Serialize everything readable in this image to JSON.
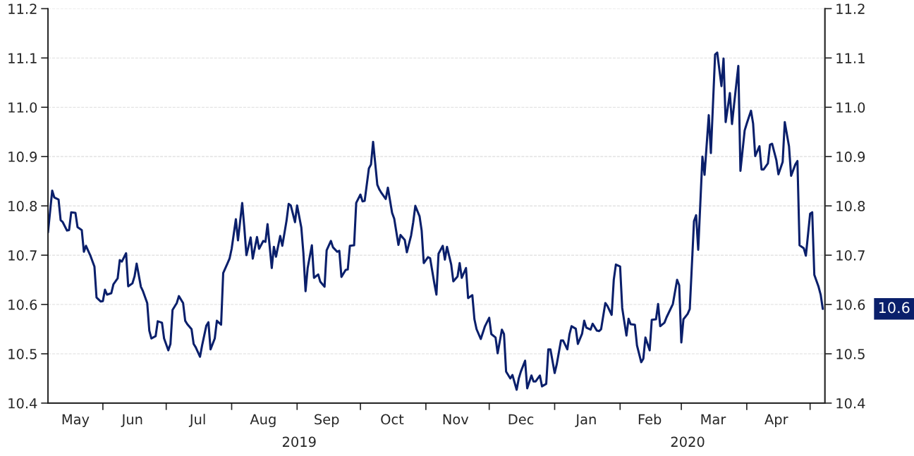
{
  "chart_data": {
    "type": "line",
    "x": [
      "2019-05-06",
      "2019-05-08",
      "2019-05-09",
      "2019-05-11",
      "2019-05-12",
      "2019-05-13",
      "2019-05-15",
      "2019-05-16",
      "2019-05-17",
      "2019-05-19",
      "2019-05-20",
      "2019-05-22",
      "2019-05-23",
      "2019-05-24",
      "2019-05-26",
      "2019-05-28",
      "2019-05-29",
      "2019-05-31",
      "2019-06-01",
      "2019-06-02",
      "2019-06-03",
      "2019-06-05",
      "2019-06-06",
      "2019-06-08",
      "2019-06-09",
      "2019-06-10",
      "2019-06-12",
      "2019-06-13",
      "2019-06-15",
      "2019-06-16",
      "2019-06-17",
      "2019-06-19",
      "2019-06-20",
      "2019-06-22",
      "2019-06-23",
      "2019-06-24",
      "2019-06-26",
      "2019-06-27",
      "2019-06-29",
      "2019-06-30",
      "2019-07-02",
      "2019-07-03",
      "2019-07-04",
      "2019-07-06",
      "2019-07-07",
      "2019-07-09",
      "2019-07-10",
      "2019-07-11",
      "2019-07-13",
      "2019-07-14",
      "2019-07-15",
      "2019-07-17",
      "2019-07-18",
      "2019-07-20",
      "2019-07-21",
      "2019-07-22",
      "2019-07-24",
      "2019-07-25",
      "2019-07-27",
      "2019-07-28",
      "2019-07-30",
      "2019-07-31",
      "2019-08-01",
      "2019-08-03",
      "2019-08-04",
      "2019-08-06",
      "2019-08-07",
      "2019-08-08",
      "2019-08-10",
      "2019-08-11",
      "2019-08-13",
      "2019-08-14",
      "2019-08-16",
      "2019-08-17",
      "2019-08-18",
      "2019-08-20",
      "2019-08-21",
      "2019-08-22",
      "2019-08-24",
      "2019-08-25",
      "2019-08-27",
      "2019-08-28",
      "2019-08-29",
      "2019-08-31",
      "2019-09-01",
      "2019-09-03",
      "2019-09-04",
      "2019-09-05",
      "2019-09-06",
      "2019-09-08",
      "2019-09-09",
      "2019-09-11",
      "2019-09-12",
      "2019-09-14",
      "2019-09-15",
      "2019-09-17",
      "2019-09-18",
      "2019-09-20",
      "2019-09-21",
      "2019-09-22",
      "2019-09-24",
      "2019-09-25",
      "2019-09-26",
      "2019-09-28",
      "2019-09-29",
      "2019-10-01",
      "2019-10-02",
      "2019-10-03",
      "2019-10-05",
      "2019-10-06",
      "2019-10-07",
      "2019-10-09",
      "2019-10-10",
      "2019-10-11",
      "2019-10-13",
      "2019-10-14",
      "2019-10-16",
      "2019-10-17",
      "2019-10-19",
      "2019-10-20",
      "2019-10-22",
      "2019-10-23",
      "2019-10-25",
      "2019-10-26",
      "2019-10-27",
      "2019-10-29",
      "2019-10-30",
      "2019-10-31",
      "2019-11-02",
      "2019-11-03",
      "2019-11-05",
      "2019-11-06",
      "2019-11-07",
      "2019-11-09",
      "2019-11-10",
      "2019-11-11",
      "2019-11-13",
      "2019-11-14",
      "2019-11-16",
      "2019-11-17",
      "2019-11-18",
      "2019-11-20",
      "2019-11-21",
      "2019-11-23",
      "2019-11-24",
      "2019-11-25",
      "2019-11-27",
      "2019-11-29",
      "2019-12-01",
      "2019-12-02",
      "2019-12-04",
      "2019-12-05",
      "2019-12-07",
      "2019-12-08",
      "2019-12-09",
      "2019-12-11",
      "2019-12-12",
      "2019-12-14",
      "2019-12-15",
      "2019-12-16",
      "2019-12-18",
      "2019-12-19",
      "2019-12-21",
      "2019-12-22",
      "2019-12-23",
      "2019-12-25",
      "2019-12-26",
      "2019-12-28",
      "2019-12-29",
      "2019-12-30",
      "2020-01-01",
      "2020-01-02",
      "2020-01-04",
      "2020-01-05",
      "2020-01-07",
      "2020-01-08",
      "2020-01-09",
      "2020-01-11",
      "2020-01-12",
      "2020-01-14",
      "2020-01-15",
      "2020-01-16",
      "2020-01-18",
      "2020-01-19",
      "2020-01-21",
      "2020-01-22",
      "2020-01-23",
      "2020-01-25",
      "2020-01-26",
      "2020-01-28",
      "2020-01-29",
      "2020-01-30",
      "2020-02-01",
      "2020-02-02",
      "2020-02-04",
      "2020-02-05",
      "2020-02-06",
      "2020-02-08",
      "2020-02-09",
      "2020-02-11",
      "2020-02-12",
      "2020-02-13",
      "2020-02-15",
      "2020-02-16",
      "2020-02-18",
      "2020-02-19",
      "2020-02-20",
      "2020-02-22",
      "2020-02-23",
      "2020-02-26",
      "2020-02-28",
      "2020-02-29",
      "2020-03-01",
      "2020-03-02",
      "2020-03-04",
      "2020-03-05",
      "2020-03-07",
      "2020-03-08",
      "2020-03-09",
      "2020-03-11",
      "2020-03-12",
      "2020-03-14",
      "2020-03-15",
      "2020-03-17",
      "2020-03-18",
      "2020-03-20",
      "2020-03-21",
      "2020-03-22",
      "2020-03-24",
      "2020-03-25",
      "2020-03-26",
      "2020-03-28",
      "2020-03-29",
      "2020-03-31",
      "2020-04-01",
      "2020-04-03",
      "2020-04-04",
      "2020-04-05",
      "2020-04-07",
      "2020-04-08",
      "2020-04-09",
      "2020-04-11",
      "2020-04-12",
      "2020-04-13",
      "2020-04-15",
      "2020-04-16",
      "2020-04-18",
      "2020-04-19",
      "2020-04-21",
      "2020-04-22",
      "2020-04-24",
      "2020-04-25",
      "2020-04-26",
      "2020-04-28",
      "2020-04-29",
      "2020-05-01",
      "2020-05-02",
      "2020-05-03",
      "2020-05-05",
      "2020-05-06",
      "2020-05-07"
    ],
    "series": [
      {
        "color": "#0a1f6b",
        "values": [
          10.746,
          10.831,
          10.817,
          10.813,
          10.771,
          10.767,
          10.75,
          10.751,
          10.787,
          10.786,
          10.757,
          10.751,
          10.707,
          10.719,
          10.7,
          10.677,
          10.614,
          10.606,
          10.607,
          10.63,
          10.62,
          10.623,
          10.641,
          10.653,
          10.69,
          10.687,
          10.704,
          10.637,
          10.643,
          10.657,
          10.683,
          10.636,
          10.627,
          10.603,
          10.547,
          10.531,
          10.536,
          10.566,
          10.563,
          10.531,
          10.507,
          10.52,
          10.589,
          10.603,
          10.617,
          10.603,
          10.567,
          10.56,
          10.55,
          10.52,
          10.513,
          10.494,
          10.517,
          10.557,
          10.564,
          10.509,
          10.531,
          10.567,
          10.559,
          10.664,
          10.683,
          10.693,
          10.713,
          10.773,
          10.73,
          10.806,
          10.756,
          10.7,
          10.736,
          10.693,
          10.737,
          10.713,
          10.729,
          10.727,
          10.763,
          10.674,
          10.717,
          10.697,
          10.739,
          10.719,
          10.77,
          10.804,
          10.801,
          10.767,
          10.801,
          10.756,
          10.703,
          10.627,
          10.674,
          10.72,
          10.654,
          10.661,
          10.646,
          10.636,
          10.71,
          10.729,
          10.716,
          10.707,
          10.709,
          10.656,
          10.67,
          10.671,
          10.719,
          10.72,
          10.806,
          10.823,
          10.809,
          10.81,
          10.876,
          10.884,
          10.93,
          10.843,
          10.833,
          10.826,
          10.814,
          10.837,
          10.786,
          10.774,
          10.721,
          10.741,
          10.731,
          10.706,
          10.74,
          10.767,
          10.8,
          10.779,
          10.75,
          10.684,
          10.696,
          10.694,
          10.643,
          10.62,
          10.703,
          10.719,
          10.691,
          10.717,
          10.681,
          10.647,
          10.657,
          10.684,
          10.654,
          10.674,
          10.613,
          10.619,
          10.57,
          10.55,
          10.53,
          10.556,
          10.573,
          10.54,
          10.533,
          10.501,
          10.549,
          10.54,
          10.464,
          10.45,
          10.457,
          10.427,
          10.45,
          10.464,
          10.486,
          10.43,
          10.456,
          10.444,
          10.444,
          10.456,
          10.434,
          10.439,
          10.509,
          10.509,
          10.461,
          10.479,
          10.527,
          10.527,
          10.509,
          10.539,
          10.556,
          10.551,
          10.52,
          10.541,
          10.567,
          10.553,
          10.549,
          10.561,
          10.547,
          10.546,
          10.55,
          10.603,
          10.597,
          10.579,
          10.65,
          10.681,
          10.677,
          10.593,
          10.537,
          10.571,
          10.56,
          10.559,
          10.517,
          10.483,
          10.49,
          10.533,
          10.507,
          10.569,
          10.57,
          10.601,
          10.556,
          10.563,
          10.574,
          10.601,
          10.65,
          10.639,
          10.523,
          10.57,
          10.581,
          10.591,
          10.769,
          10.781,
          10.711,
          10.9,
          10.863,
          10.984,
          10.907,
          11.107,
          11.111,
          11.043,
          11.099,
          10.97,
          11.029,
          10.966,
          11.006,
          11.084,
          10.871,
          10.953,
          10.967,
          10.993,
          10.967,
          10.901,
          10.921,
          10.874,
          10.874,
          10.886,
          10.924,
          10.926,
          10.893,
          10.864,
          10.889,
          10.97,
          10.921,
          10.861,
          10.884,
          10.891,
          10.72,
          10.714,
          10.699,
          10.784,
          10.787,
          10.66,
          10.636,
          10.62,
          10.591
        ]
      }
    ],
    "xlim": [
      "2019-05-06",
      "2020-05-08"
    ],
    "xticks": [
      {
        "value": "2019-05-19",
        "label": "May"
      },
      {
        "value": "2019-06-01",
        "label": null
      },
      {
        "value": "2019-06-15",
        "label": "Jun"
      },
      {
        "value": "2019-07-01",
        "label": null
      },
      {
        "value": "2019-07-16",
        "label": "Jul"
      },
      {
        "value": "2019-08-01",
        "label": null
      },
      {
        "value": "2019-08-16",
        "label": "Aug"
      },
      {
        "value": "2019-09-01",
        "label": null
      },
      {
        "value": "2019-09-15",
        "label": "Sep"
      },
      {
        "value": "2019-10-01",
        "label": null
      },
      {
        "value": "2019-10-16",
        "label": "Oct"
      },
      {
        "value": "2019-11-01",
        "label": null
      },
      {
        "value": "2019-11-15",
        "label": "Nov"
      },
      {
        "value": "2019-12-01",
        "label": null
      },
      {
        "value": "2019-12-16",
        "label": "Dec"
      },
      {
        "value": "2020-01-01",
        "label": null
      },
      {
        "value": "2020-01-16",
        "label": "Jan"
      },
      {
        "value": "2020-02-01",
        "label": null
      },
      {
        "value": "2020-02-15",
        "label": "Feb"
      },
      {
        "value": "2020-03-01",
        "label": null
      },
      {
        "value": "2020-03-16",
        "label": "Mar"
      },
      {
        "value": "2020-04-01",
        "label": null
      },
      {
        "value": "2020-04-15",
        "label": "Apr"
      },
      {
        "value": "2020-05-01",
        "label": null
      }
    ],
    "x2lim": [
      "2019-05-06",
      "2020-05-08"
    ],
    "x2ticks": [
      {
        "value": "2019-09-02",
        "label": "2019"
      },
      {
        "value": "2020-03-04",
        "label": "2020"
      }
    ],
    "ylim": [
      10.4,
      11.2
    ],
    "yticks": [
      10.4,
      10.5,
      10.6,
      10.7,
      10.8,
      10.9,
      {
        "value": 11,
        "label": "11.0"
      },
      11.1,
      11.2
    ],
    "y2lim": [
      10.4,
      11.2
    ],
    "y2ticks": [
      10.4,
      10.5,
      10.6,
      10.7,
      10.8,
      10.9,
      {
        "value": 11,
        "label": "11.0"
      },
      11.1,
      11.2
    ],
    "annotations": [
      "10.6"
    ],
    "grid": "y",
    "line_style": "solid"
  }
}
